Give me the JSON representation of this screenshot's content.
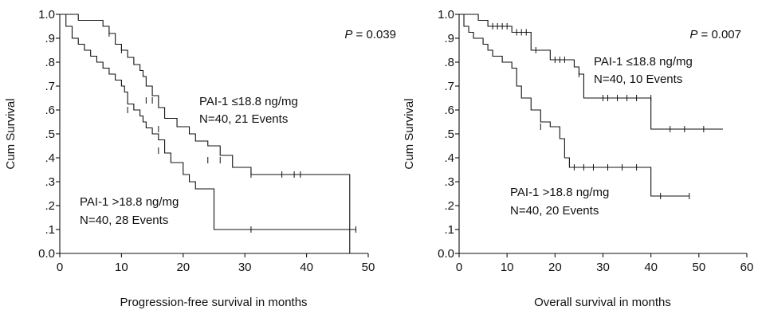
{
  "chart_data": [
    {
      "type": "line",
      "step": true,
      "xlabel": "Progression-free survival in months",
      "ylabel": "Cum Survival",
      "xlim": [
        0,
        50
      ],
      "ylim": [
        0.0,
        1.0
      ],
      "xticks": [
        "0",
        "10",
        "20",
        "30",
        "40",
        "50"
      ],
      "yticks": [
        "0.0",
        ".1",
        ".2",
        ".3",
        ".4",
        ".5",
        ".6",
        ".7",
        ".8",
        ".9",
        "1.0"
      ],
      "pvalue": {
        "label": "P",
        "text": " = 0.039"
      },
      "annotations": [
        {
          "id": "low",
          "lines": [
            "PAI-1 ≤18.8 ng/mg",
            "N=40, 21 Events"
          ]
        },
        {
          "id": "high",
          "lines": [
            "PAI-1 >18.8 ng/mg",
            "N=40, 28 Events"
          ]
        }
      ],
      "series": [
        {
          "id": "low",
          "steps": [
            [
              0,
              1.0
            ],
            [
              3,
              0.975
            ],
            [
              7,
              0.95
            ],
            [
              8,
              0.92
            ],
            [
              9,
              0.875
            ],
            [
              10,
              0.85
            ],
            [
              11,
              0.82
            ],
            [
              12,
              0.79
            ],
            [
              13,
              0.765
            ],
            [
              13.5,
              0.74
            ],
            [
              14,
              0.7
            ],
            [
              15,
              0.66
            ],
            [
              16,
              0.61
            ],
            [
              17,
              0.565
            ],
            [
              19,
              0.53
            ],
            [
              21,
              0.5
            ],
            [
              22,
              0.47
            ],
            [
              24,
              0.45
            ],
            [
              26,
              0.41
            ],
            [
              28,
              0.36
            ],
            [
              31,
              0.33
            ],
            [
              47,
              0.0
            ]
          ],
          "censored": [
            [
              8,
              0.92
            ],
            [
              10,
              0.85
            ],
            [
              14,
              0.64
            ],
            [
              15,
              0.64
            ],
            [
              16,
              0.52
            ],
            [
              24,
              0.39
            ],
            [
              26,
              0.39
            ],
            [
              31,
              0.33
            ],
            [
              36,
              0.33
            ],
            [
              38,
              0.33
            ],
            [
              39,
              0.33
            ]
          ]
        },
        {
          "id": "high",
          "steps": [
            [
              0,
              1.0
            ],
            [
              1,
              0.95
            ],
            [
              2,
              0.9
            ],
            [
              3,
              0.875
            ],
            [
              4,
              0.85
            ],
            [
              5,
              0.825
            ],
            [
              6,
              0.8
            ],
            [
              7,
              0.775
            ],
            [
              8,
              0.75
            ],
            [
              9,
              0.725
            ],
            [
              10,
              0.7
            ],
            [
              10.5,
              0.675
            ],
            [
              11,
              0.625
            ],
            [
              12,
              0.6
            ],
            [
              13,
              0.575
            ],
            [
              13.5,
              0.55
            ],
            [
              14,
              0.525
            ],
            [
              15,
              0.5
            ],
            [
              16,
              0.475
            ],
            [
              17,
              0.42
            ],
            [
              18,
              0.38
            ],
            [
              20,
              0.33
            ],
            [
              21,
              0.3
            ],
            [
              22,
              0.27
            ],
            [
              25,
              0.1
            ],
            [
              48,
              0.1
            ]
          ],
          "censored": [
            [
              11,
              0.6
            ],
            [
              16,
              0.43
            ],
            [
              31,
              0.1
            ],
            [
              48,
              0.1
            ]
          ]
        }
      ]
    },
    {
      "type": "line",
      "step": true,
      "xlabel": "Overall survival in months",
      "ylabel": "Cum Survival",
      "xlim": [
        0,
        60
      ],
      "ylim": [
        0.0,
        1.0
      ],
      "xticks": [
        "0",
        "10",
        "20",
        "30",
        "40",
        "50",
        "60"
      ],
      "yticks": [
        "0.0",
        ".1",
        ".2",
        ".3",
        ".4",
        ".5",
        ".6",
        ".7",
        ".8",
        ".9",
        "1.0"
      ],
      "pvalue": {
        "label": "P",
        "text": " = 0.007"
      },
      "annotations": [
        {
          "id": "low",
          "lines": [
            "PAI-1 ≤18.8 ng/mg",
            "N=40, 10 Events"
          ]
        },
        {
          "id": "high",
          "lines": [
            "PAI-1 >18.8 ng/mg",
            "N=40, 20 Events"
          ]
        }
      ],
      "series": [
        {
          "id": "low",
          "steps": [
            [
              0,
              1.0
            ],
            [
              4,
              0.975
            ],
            [
              6,
              0.95
            ],
            [
              11,
              0.925
            ],
            [
              15,
              0.85
            ],
            [
              19,
              0.81
            ],
            [
              24,
              0.78
            ],
            [
              25,
              0.75
            ],
            [
              26,
              0.65
            ],
            [
              40,
              0.52
            ],
            [
              55,
              0.52
            ]
          ],
          "censored": [
            [
              7,
              0.95
            ],
            [
              8,
              0.95
            ],
            [
              9,
              0.95
            ],
            [
              10,
              0.95
            ],
            [
              12,
              0.925
            ],
            [
              13,
              0.925
            ],
            [
              14,
              0.925
            ],
            [
              16,
              0.85
            ],
            [
              20,
              0.81
            ],
            [
              21,
              0.81
            ],
            [
              22,
              0.81
            ],
            [
              25,
              0.75
            ],
            [
              30,
              0.65
            ],
            [
              31,
              0.65
            ],
            [
              33,
              0.65
            ],
            [
              35,
              0.65
            ],
            [
              37,
              0.65
            ],
            [
              40,
              0.65
            ],
            [
              44,
              0.52
            ],
            [
              47,
              0.52
            ],
            [
              51,
              0.52
            ]
          ]
        },
        {
          "id": "high",
          "steps": [
            [
              0,
              1.0
            ],
            [
              1,
              0.95
            ],
            [
              2,
              0.925
            ],
            [
              3,
              0.9
            ],
            [
              5,
              0.875
            ],
            [
              6,
              0.85
            ],
            [
              7,
              0.825
            ],
            [
              9,
              0.8
            ],
            [
              11,
              0.775
            ],
            [
              12,
              0.7
            ],
            [
              13,
              0.65
            ],
            [
              15,
              0.6
            ],
            [
              17,
              0.55
            ],
            [
              19,
              0.53
            ],
            [
              21,
              0.48
            ],
            [
              22,
              0.4
            ],
            [
              23,
              0.36
            ],
            [
              40,
              0.24
            ],
            [
              48,
              0.24
            ]
          ],
          "censored": [
            [
              17,
              0.53
            ],
            [
              24,
              0.36
            ],
            [
              26,
              0.36
            ],
            [
              28,
              0.36
            ],
            [
              31,
              0.36
            ],
            [
              34,
              0.36
            ],
            [
              37,
              0.36
            ],
            [
              42,
              0.24
            ],
            [
              48,
              0.24
            ]
          ]
        }
      ]
    }
  ]
}
